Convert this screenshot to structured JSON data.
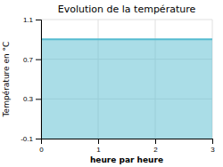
{
  "chart_data": {
    "type": "area",
    "title": "Evolution de la température",
    "xlabel": "heure par heure",
    "ylabel": "Température en °C",
    "x": [
      0,
      3
    ],
    "values": [
      0.9,
      0.9
    ],
    "color": "#55bbd0",
    "xlim": [
      0,
      3
    ],
    "ylim": [
      -0.1,
      1.1
    ],
    "xticks": [
      0,
      1,
      2,
      3
    ],
    "yticks": [
      -0.1,
      0.3,
      0.7,
      1.1
    ],
    "grid": true
  }
}
